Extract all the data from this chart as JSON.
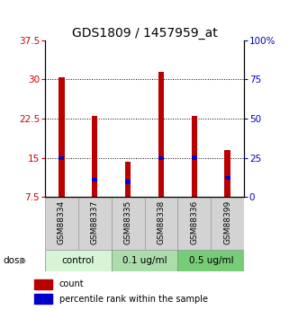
{
  "title": "GDS1809 / 1457959_at",
  "samples": [
    "GSM88334",
    "GSM88337",
    "GSM88335",
    "GSM88338",
    "GSM88336",
    "GSM88399"
  ],
  "count_values": [
    30.5,
    23.0,
    14.3,
    31.5,
    23.0,
    16.5
  ],
  "percentile_values": [
    24.5,
    11.0,
    9.5,
    24.5,
    25.0,
    12.0
  ],
  "bar_bottom": 7.5,
  "ylim_left": [
    7.5,
    37.5
  ],
  "ylim_right": [
    0,
    100
  ],
  "yticks_left": [
    7.5,
    15.0,
    22.5,
    30.0,
    37.5
  ],
  "yticks_right": [
    0,
    25,
    50,
    75,
    100
  ],
  "ytick_labels_left": [
    "7.5",
    "15",
    "22.5",
    "30",
    "37.5"
  ],
  "ytick_labels_right": [
    "0",
    "25",
    "50",
    "75",
    "100%"
  ],
  "dose_groups": [
    {
      "label": "control",
      "start": 0,
      "end": 2
    },
    {
      "label": "0.1 ug/ml",
      "start": 2,
      "end": 4
    },
    {
      "label": "0.5 ug/ml",
      "start": 4,
      "end": 6
    }
  ],
  "dose_colors": [
    "#d6f5d6",
    "#aaddaa",
    "#77cc77"
  ],
  "dose_label": "dose",
  "bar_color_red": "#bb0000",
  "bar_color_blue": "#0000cc",
  "bar_width": 0.18,
  "grid_color": "#000000",
  "bg_color": "#ffffff",
  "plot_bg_color": "#ffffff",
  "label_count": "count",
  "label_percentile": "percentile rank within the sample",
  "title_fontsize": 10,
  "tick_fontsize": 7.5,
  "sample_fontsize": 6.5,
  "dose_fontsize": 7.5
}
